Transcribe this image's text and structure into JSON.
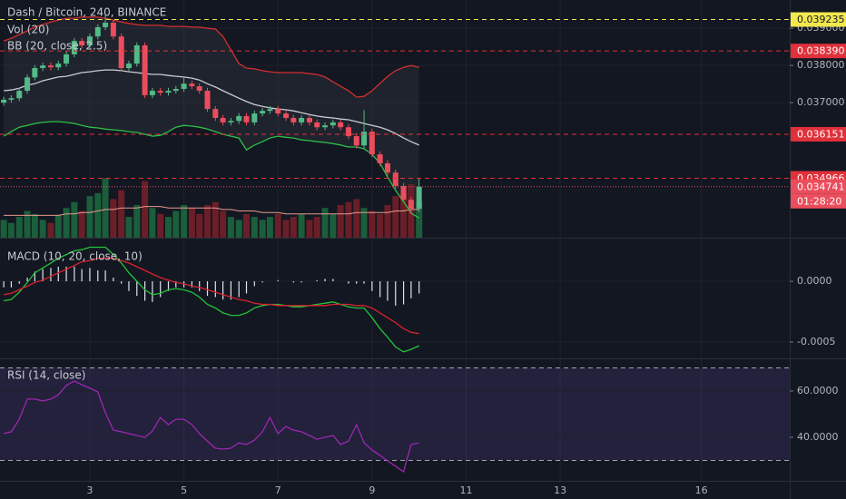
{
  "chart_data": [
    {
      "type": "candlestick",
      "title": "Dash / Bitcoin, 240, BINANCE",
      "x": [
        1.17,
        1.33,
        1.5,
        1.67,
        1.83,
        2,
        2.17,
        2.33,
        2.5,
        2.67,
        2.83,
        3,
        3.17,
        3.33,
        3.5,
        3.67,
        3.83,
        4,
        4.17,
        4.33,
        4.5,
        4.67,
        4.83,
        5,
        5.17,
        5.33,
        5.5,
        5.67,
        5.83,
        6,
        6.17,
        6.33,
        6.5,
        6.67,
        6.83,
        7,
        7.17,
        7.33,
        7.5,
        7.67,
        7.83,
        8,
        8.17,
        8.33,
        8.5,
        8.67,
        8.83,
        9,
        9.17,
        9.33,
        9.5,
        9.67,
        9.83,
        10
      ],
      "xlim": [
        1.09,
        17.88
      ],
      "xticks": [
        3,
        5,
        7,
        9,
        11,
        13,
        16
      ],
      "ylim": [
        0.03337,
        0.03976
      ],
      "yticks": [
        {
          "value": 0.039,
          "label": "0.039000"
        },
        {
          "value": 0.038,
          "label": "0.038000"
        },
        {
          "value": 0.037,
          "label": "0.037000"
        }
      ],
      "open": [
        0.037,
        0.03708,
        0.03712,
        0.03732,
        0.03768,
        0.03793,
        0.038,
        0.03795,
        0.03805,
        0.0383,
        0.03866,
        0.03854,
        0.03878,
        0.03903,
        0.03915,
        0.03878,
        0.03793,
        0.03805,
        0.03854,
        0.0372,
        0.03732,
        0.03727,
        0.03732,
        0.03737,
        0.03751,
        0.03744,
        0.03732,
        0.03683,
        0.03659,
        0.03647,
        0.03651,
        0.03664,
        0.03647,
        0.03671,
        0.03678,
        0.03683,
        0.03671,
        0.03659,
        0.03647,
        0.03659,
        0.03647,
        0.03634,
        0.03639,
        0.03647,
        0.03634,
        0.0361,
        0.03585,
        0.03622,
        0.03561,
        0.03537,
        0.03512,
        0.03476,
        0.03439,
        0.03415
      ],
      "high": [
        0.03716,
        0.0372,
        0.0374,
        0.03776,
        0.03801,
        0.03808,
        0.03808,
        0.03813,
        0.03838,
        0.03874,
        0.03874,
        0.03886,
        0.03911,
        0.03935,
        0.03923,
        0.03886,
        0.03813,
        0.03862,
        0.03862,
        0.0374,
        0.0374,
        0.0374,
        0.03745,
        0.0377,
        0.03759,
        0.03752,
        0.0374,
        0.03691,
        0.03667,
        0.03659,
        0.03672,
        0.03672,
        0.03679,
        0.03686,
        0.03691,
        0.03691,
        0.03679,
        0.03667,
        0.03667,
        0.03667,
        0.03655,
        0.03647,
        0.03655,
        0.03655,
        0.03642,
        0.03618,
        0.0368,
        0.0363,
        0.03569,
        0.03545,
        0.0352,
        0.03484,
        0.03447,
        0.03497
      ],
      "low": [
        0.03692,
        0.037,
        0.03704,
        0.03724,
        0.0376,
        0.03785,
        0.03787,
        0.03787,
        0.03797,
        0.03822,
        0.03846,
        0.03846,
        0.0387,
        0.03895,
        0.0387,
        0.03785,
        0.03785,
        0.03797,
        0.03712,
        0.03712,
        0.03719,
        0.03719,
        0.03724,
        0.03729,
        0.03736,
        0.03724,
        0.03675,
        0.03651,
        0.03639,
        0.03639,
        0.03643,
        0.03639,
        0.03639,
        0.03663,
        0.0367,
        0.03663,
        0.03651,
        0.03639,
        0.03639,
        0.03639,
        0.03626,
        0.03626,
        0.03631,
        0.03626,
        0.03602,
        0.03577,
        0.03577,
        0.03553,
        0.03529,
        0.03504,
        0.03468,
        0.03431,
        0.034,
        0.03407
      ],
      "close": [
        0.03708,
        0.03712,
        0.03732,
        0.03768,
        0.03793,
        0.038,
        0.03795,
        0.03805,
        0.0383,
        0.03866,
        0.03854,
        0.03878,
        0.03903,
        0.03915,
        0.03878,
        0.03793,
        0.03805,
        0.03854,
        0.0372,
        0.03732,
        0.03727,
        0.03732,
        0.03737,
        0.03751,
        0.03744,
        0.03732,
        0.03683,
        0.03659,
        0.03647,
        0.03651,
        0.03664,
        0.03647,
        0.03671,
        0.03678,
        0.03683,
        0.03671,
        0.03659,
        0.03647,
        0.03659,
        0.03647,
        0.03634,
        0.03639,
        0.03647,
        0.03634,
        0.0361,
        0.03585,
        0.03622,
        0.03561,
        0.03537,
        0.03512,
        0.03476,
        0.03439,
        0.03415,
        0.03474
      ],
      "up_color": "#53b987",
      "down_color": "#eb4d5c",
      "volume_label": "Vol (20)",
      "volume": [
        12,
        10,
        14,
        18,
        16,
        12,
        10,
        15,
        20,
        24,
        18,
        28,
        30,
        40,
        26,
        32,
        14,
        22,
        38,
        20,
        16,
        14,
        18,
        22,
        20,
        16,
        22,
        24,
        18,
        14,
        12,
        16,
        14,
        12,
        14,
        16,
        12,
        14,
        16,
        12,
        14,
        20,
        16,
        22,
        24,
        26,
        20,
        18,
        16,
        22,
        28,
        30,
        36,
        24
      ],
      "volume_lim": [
        0,
        160
      ],
      "volume_up_color": "#1b5e3b",
      "volume_down_color": "#6a1f28",
      "volume_ma": [
        15,
        15,
        15,
        15,
        15,
        15,
        15,
        15,
        16,
        16,
        17,
        17,
        18,
        19,
        19,
        20,
        20,
        20,
        21,
        21,
        21,
        20,
        20,
        20,
        20,
        20,
        20,
        20,
        19,
        19,
        18,
        18,
        18,
        17,
        17,
        17,
        16,
        16,
        16,
        16,
        16,
        16,
        16,
        16,
        16,
        17,
        17,
        17,
        17,
        17,
        18,
        18,
        19,
        19
      ],
      "volume_ma_color": "#e8998d",
      "bb_label": "BB (20, close, 2.5)",
      "series": [
        {
          "color": "#d32f2f",
          "values": [
            0.03866,
            0.03873,
            0.03883,
            0.03893,
            0.03903,
            0.0391,
            0.03917,
            0.03922,
            0.03927,
            0.03927,
            0.0393,
            0.0393,
            0.0393,
            0.03927,
            0.03922,
            0.03917,
            0.03913,
            0.0391,
            0.03908,
            0.03908,
            0.03908,
            0.03905,
            0.03905,
            0.03905,
            0.03903,
            0.03903,
            0.039,
            0.03898,
            0.03878,
            0.03842,
            0.03805,
            0.03793,
            0.03791,
            0.03786,
            0.03783,
            0.03781,
            0.03781,
            0.03781,
            0.03781,
            0.03778,
            0.03776,
            0.03769,
            0.03756,
            0.03744,
            0.03732,
            0.03715,
            0.03717,
            0.03732,
            0.03752,
            0.03771,
            0.03786,
            0.03795,
            0.038,
            0.03795
          ]
        },
        {
          "color": "#c9ccd3",
          "values": [
            0.03732,
            0.03734,
            0.03739,
            0.03747,
            0.03751,
            0.03759,
            0.03764,
            0.03769,
            0.03771,
            0.03776,
            0.03781,
            0.03783,
            0.03786,
            0.03788,
            0.03788,
            0.03786,
            0.03783,
            0.03781,
            0.03778,
            0.03776,
            0.03776,
            0.03773,
            0.03771,
            0.03769,
            0.03766,
            0.03761,
            0.03751,
            0.03742,
            0.03732,
            0.03722,
            0.03712,
            0.03703,
            0.03695,
            0.0369,
            0.03686,
            0.03683,
            0.03681,
            0.03678,
            0.03673,
            0.03668,
            0.03664,
            0.03661,
            0.03659,
            0.03656,
            0.03654,
            0.03649,
            0.03644,
            0.03639,
            0.03634,
            0.03627,
            0.03617,
            0.03605,
            0.03595,
            0.03586
          ]
        },
        {
          "color": "#2fbf46",
          "values": [
            0.0361,
            0.03622,
            0.03634,
            0.03639,
            0.03644,
            0.03647,
            0.03649,
            0.03649,
            0.03647,
            0.03644,
            0.03639,
            0.03634,
            0.03632,
            0.03629,
            0.03627,
            0.03625,
            0.03622,
            0.0362,
            0.03615,
            0.0361,
            0.03612,
            0.03622,
            0.03634,
            0.03639,
            0.03637,
            0.03634,
            0.03629,
            0.03622,
            0.03615,
            0.0361,
            0.03605,
            0.03573,
            0.03586,
            0.03595,
            0.03605,
            0.0361,
            0.03607,
            0.03605,
            0.036,
            0.03598,
            0.03595,
            0.03593,
            0.0359,
            0.03586,
            0.03581,
            0.03581,
            0.03576,
            0.03561,
            0.03537,
            0.035,
            0.03464,
            0.03434,
            0.03403,
            0.0339
          ]
        }
      ],
      "band_fill": "rgba(120,123,134,0.12)",
      "price_lines": [
        {
          "value": 0.039235,
          "label": "0.039235",
          "color": "#f2e94e",
          "text_color": "#131722",
          "style": "dashed"
        },
        {
          "value": 0.03839,
          "label": "0.038390",
          "color": "#e0303a",
          "text_color": "#ffffff",
          "style": "dashed"
        },
        {
          "value": 0.036151,
          "label": "0.036151",
          "color": "#e0303a",
          "text_color": "#ffffff",
          "style": "dashed"
        },
        {
          "value": 0.034966,
          "label": "0.034966",
          "color": "#e0303a",
          "text_color": "#ffffff",
          "style": "dashed"
        },
        {
          "value": 0.034741,
          "label": "0.034741",
          "color": "#eb4d5c",
          "text_color": "#ffffff",
          "style": "dotted"
        }
      ],
      "countdown": "01:28:20"
    },
    {
      "type": "macd",
      "title": "MACD (10, 20, close, 10)",
      "ylim": [
        -0.000634,
        0.000351
      ],
      "yticks": [
        {
          "value": 0,
          "label": "0.0000"
        },
        {
          "value": -0.0005,
          "label": "-0.0005"
        }
      ],
      "series": [
        {
          "color": "#22c43a",
          "values": [
            -0.00016,
            -0.00015,
            -9e-05,
            -1e-05,
            7e-05,
            0.00011,
            0.00015,
            0.00019,
            0.00022,
            0.00025,
            0.00026,
            0.00028,
            0.00028,
            0.00028,
            0.00022,
            0.00015,
            7e-05,
            0,
            -7e-05,
            -0.00011,
            -0.0001,
            -7e-05,
            -6e-05,
            -7e-05,
            -9e-05,
            -0.00013,
            -0.00019,
            -0.00022,
            -0.00026,
            -0.00028,
            -0.00028,
            -0.00026,
            -0.00022,
            -0.0002,
            -0.00019,
            -0.00019,
            -0.0002,
            -0.00021,
            -0.00021,
            -0.0002,
            -0.00019,
            -0.00018,
            -0.00017,
            -0.00019,
            -0.00021,
            -0.00022,
            -0.00022,
            -0.0003,
            -0.00039,
            -0.00046,
            -0.00054,
            -0.00058,
            -0.00056,
            -0.00053
          ]
        },
        {
          "color": "#d8232d",
          "values": [
            -0.00011,
            -0.0001,
            -7e-05,
            -4e-05,
            -1e-05,
            1e-05,
            4e-05,
            7e-05,
            0.0001,
            0.00013,
            0.00016,
            0.00017,
            0.00019,
            0.00019,
            0.00019,
            0.00017,
            0.00015,
            0.00012,
            9e-05,
            6e-05,
            3e-05,
            1e-05,
            -1e-05,
            -2e-05,
            -4e-05,
            -5e-05,
            -7e-05,
            -9e-05,
            -0.00011,
            -0.00013,
            -0.00015,
            -0.00016,
            -0.00018,
            -0.00019,
            -0.00019,
            -0.0002,
            -0.0002,
            -0.0002,
            -0.0002,
            -0.0002,
            -0.0002,
            -0.0002,
            -0.00019,
            -0.00019,
            -0.00019,
            -0.0002,
            -0.0002,
            -0.00022,
            -0.00026,
            -0.0003,
            -0.00034,
            -0.00039,
            -0.00042,
            -0.00043
          ]
        }
      ],
      "histogram": {
        "color": "#e0e3eb",
        "values": [
          -5e-05,
          -5e-05,
          -2e-05,
          3e-05,
          8e-05,
          0.0001,
          0.00011,
          0.00012,
          0.00012,
          0.00012,
          0.0001,
          0.00011,
          9e-05,
          9e-05,
          3e-05,
          -2e-05,
          -8e-05,
          -0.00012,
          -0.00016,
          -0.00017,
          -0.00013,
          -8e-05,
          -5e-05,
          -5e-05,
          -5e-05,
          -8e-05,
          -0.00012,
          -0.00013,
          -0.00015,
          -0.00015,
          -0.00013,
          -0.0001,
          -4e-05,
          -1e-05,
          0,
          1e-05,
          0,
          -1e-05,
          -1e-05,
          0,
          1e-05,
          2e-05,
          2e-05,
          0,
          -2e-05,
          -2e-05,
          -2e-05,
          -8e-05,
          -0.00013,
          -0.00016,
          -0.0002,
          -0.00019,
          -0.00014,
          -0.0001
        ]
      }
    },
    {
      "type": "line",
      "title": "RSI (14, close)",
      "ylim": [
        21.2,
        73.7
      ],
      "yticks": [
        {
          "value": 60,
          "label": "60.0000"
        },
        {
          "value": 40,
          "label": "40.0000"
        }
      ],
      "series": [
        {
          "color": "#9c27b0",
          "values": [
            41.6,
            42.4,
            47.8,
            56.5,
            56.5,
            55.7,
            56.5,
            58.4,
            62.4,
            64.3,
            62.7,
            61.2,
            59.6,
            50.6,
            43.1,
            42.4,
            41.6,
            40.8,
            40,
            42.7,
            48.6,
            45.5,
            47.8,
            47.8,
            45.5,
            41.6,
            38.4,
            35.3,
            34.9,
            35.3,
            37.6,
            36.9,
            38.8,
            42.4,
            48.6,
            41.6,
            44.7,
            43.1,
            42.4,
            40.8,
            39.2,
            40,
            40.8,
            36.9,
            38.4,
            45.5,
            37.6,
            34.5,
            32.2,
            29.8,
            27.5,
            25.1,
            36.9,
            37.6
          ]
        }
      ],
      "bands": [
        70,
        30
      ],
      "band_color": "rgba(126,87,194,0.16)"
    }
  ]
}
